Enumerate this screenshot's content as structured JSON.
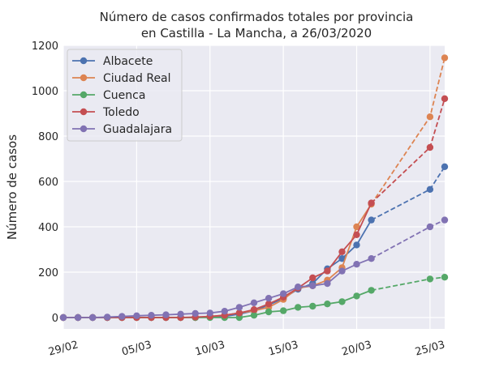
{
  "chart_data": {
    "type": "line",
    "title": "Número de casos confirmados totales por provincia",
    "subtitle": "en Castilla - La Mancha, a 26/03/2020",
    "xlabel": "",
    "ylabel": "Número de casos",
    "ylim": [
      -50,
      1200
    ],
    "yticks": [
      0,
      200,
      400,
      600,
      800,
      1000,
      1200
    ],
    "x_start_day": 0,
    "x_end_day": 26,
    "xticks": [
      {
        "day": 0,
        "label": "29/02"
      },
      {
        "day": 5,
        "label": "05/03"
      },
      {
        "day": 10,
        "label": "10/03"
      },
      {
        "day": 15,
        "label": "15/03"
      },
      {
        "day": 20,
        "label": "20/03"
      },
      {
        "day": 25,
        "label": "25/03"
      }
    ],
    "grid": true,
    "legend_position": "upper-left",
    "dashed_note": "dashed segments connect day 21 to days 25 and 26",
    "series": [
      {
        "name": "Albacete",
        "color": "#4c72b0",
        "solid": [
          [
            0,
            0
          ],
          [
            1,
            0
          ],
          [
            2,
            0
          ],
          [
            3,
            0
          ],
          [
            4,
            0
          ],
          [
            5,
            0
          ],
          [
            6,
            0
          ],
          [
            7,
            0
          ],
          [
            8,
            0
          ],
          [
            9,
            0
          ],
          [
            10,
            2
          ],
          [
            11,
            5
          ],
          [
            12,
            15
          ],
          [
            13,
            30
          ],
          [
            14,
            55
          ],
          [
            15,
            85
          ],
          [
            16,
            125
          ],
          [
            17,
            150
          ],
          [
            18,
            215
          ],
          [
            19,
            260
          ],
          [
            20,
            320
          ],
          [
            21,
            430
          ]
        ],
        "dashed": [
          [
            21,
            430
          ],
          [
            25,
            565
          ],
          [
            26,
            665
          ]
        ]
      },
      {
        "name": "Ciudad Real",
        "color": "#dd8452",
        "solid": [
          [
            0,
            0
          ],
          [
            1,
            0
          ],
          [
            2,
            0
          ],
          [
            3,
            0
          ],
          [
            4,
            0
          ],
          [
            5,
            0
          ],
          [
            6,
            0
          ],
          [
            7,
            0
          ],
          [
            8,
            0
          ],
          [
            9,
            0
          ],
          [
            10,
            5
          ],
          [
            11,
            10
          ],
          [
            12,
            20
          ],
          [
            13,
            30
          ],
          [
            14,
            45
          ],
          [
            15,
            80
          ],
          [
            16,
            130
          ],
          [
            17,
            140
          ],
          [
            18,
            165
          ],
          [
            19,
            220
          ],
          [
            20,
            400
          ],
          [
            21,
            500
          ]
        ],
        "dashed": [
          [
            21,
            500
          ],
          [
            25,
            885
          ],
          [
            26,
            1145
          ]
        ]
      },
      {
        "name": "Cuenca",
        "color": "#55a868",
        "solid": [
          [
            0,
            0
          ],
          [
            1,
            0
          ],
          [
            2,
            0
          ],
          [
            3,
            0
          ],
          [
            4,
            0
          ],
          [
            5,
            0
          ],
          [
            6,
            0
          ],
          [
            7,
            0
          ],
          [
            8,
            0
          ],
          [
            9,
            0
          ],
          [
            10,
            0
          ],
          [
            11,
            0
          ],
          [
            12,
            0
          ],
          [
            13,
            10
          ],
          [
            14,
            25
          ],
          [
            15,
            30
          ],
          [
            16,
            45
          ],
          [
            17,
            50
          ],
          [
            18,
            60
          ],
          [
            19,
            70
          ],
          [
            20,
            95
          ],
          [
            21,
            120
          ]
        ],
        "dashed": [
          [
            21,
            120
          ],
          [
            25,
            170
          ],
          [
            26,
            178
          ]
        ]
      },
      {
        "name": "Toledo",
        "color": "#c44e52",
        "solid": [
          [
            0,
            0
          ],
          [
            1,
            0
          ],
          [
            2,
            0
          ],
          [
            3,
            0
          ],
          [
            4,
            0
          ],
          [
            5,
            0
          ],
          [
            6,
            0
          ],
          [
            7,
            0
          ],
          [
            8,
            0
          ],
          [
            9,
            2
          ],
          [
            10,
            5
          ],
          [
            11,
            10
          ],
          [
            12,
            20
          ],
          [
            13,
            35
          ],
          [
            14,
            60
          ],
          [
            15,
            90
          ],
          [
            16,
            130
          ],
          [
            17,
            175
          ],
          [
            18,
            205
          ],
          [
            19,
            290
          ],
          [
            20,
            365
          ],
          [
            21,
            505
          ]
        ],
        "dashed": [
          [
            21,
            505
          ],
          [
            25,
            750
          ],
          [
            26,
            965
          ]
        ]
      },
      {
        "name": "Guadalajara",
        "color": "#8172b3",
        "solid": [
          [
            0,
            0
          ],
          [
            1,
            0
          ],
          [
            2,
            0
          ],
          [
            3,
            2
          ],
          [
            4,
            5
          ],
          [
            5,
            8
          ],
          [
            6,
            10
          ],
          [
            7,
            12
          ],
          [
            8,
            15
          ],
          [
            9,
            18
          ],
          [
            10,
            20
          ],
          [
            11,
            28
          ],
          [
            12,
            45
          ],
          [
            13,
            65
          ],
          [
            14,
            85
          ],
          [
            15,
            105
          ],
          [
            16,
            135
          ],
          [
            17,
            140
          ],
          [
            18,
            150
          ],
          [
            19,
            205
          ],
          [
            20,
            235
          ],
          [
            21,
            260
          ]
        ],
        "dashed": [
          [
            21,
            260
          ],
          [
            25,
            400
          ],
          [
            26,
            430
          ]
        ]
      }
    ]
  }
}
